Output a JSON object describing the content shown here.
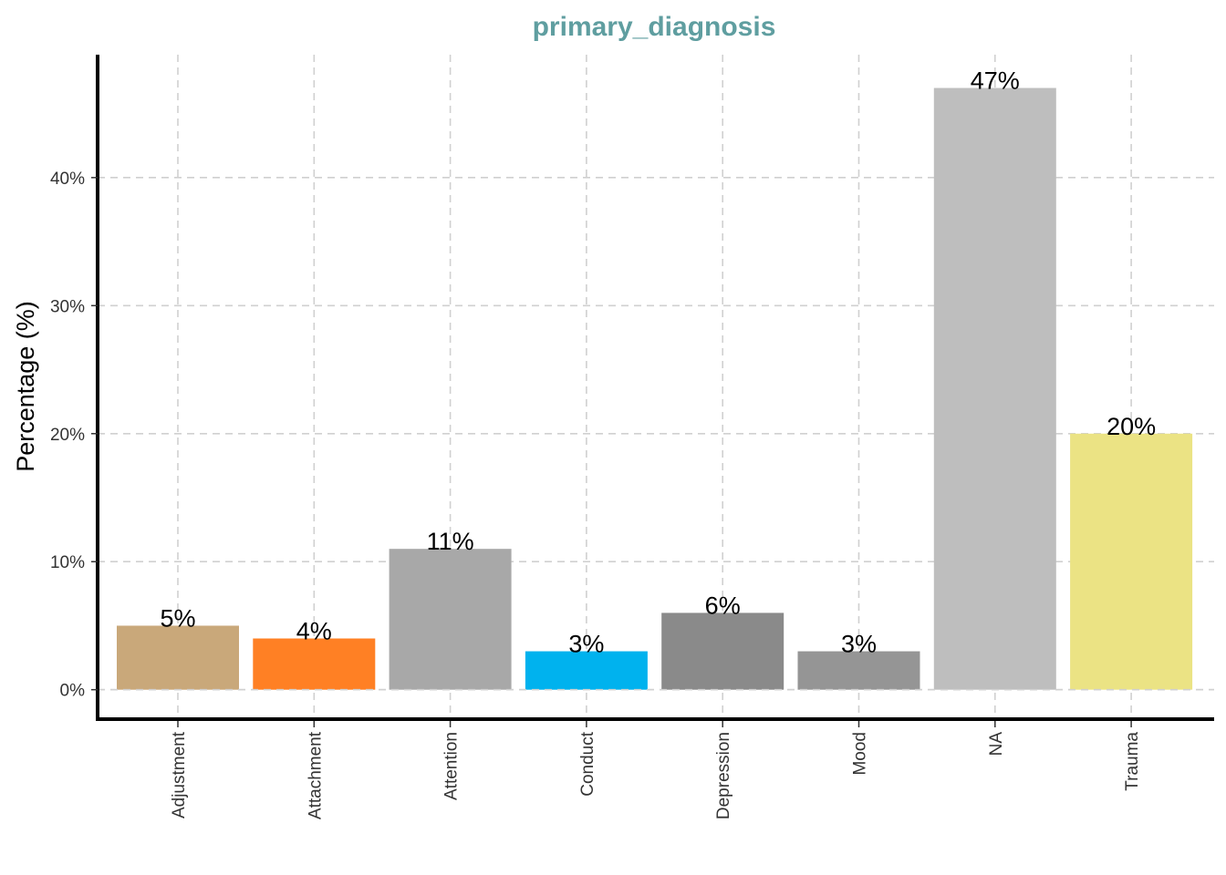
{
  "chart_data": {
    "type": "bar",
    "title": "primary_diagnosis",
    "title_color": "#5f9ea0",
    "xlabel": "",
    "ylabel": "Percentage (%)",
    "categories": [
      "Adjustment",
      "Attachment",
      "Attention",
      "Conduct",
      "Depression",
      "Mood",
      "NA",
      "Trauma"
    ],
    "values": [
      5,
      4,
      11,
      3,
      6,
      3,
      47,
      20
    ],
    "data_labels": [
      "5%",
      "4%",
      "11%",
      "3%",
      "6%",
      "3%",
      "47%",
      "20%"
    ],
    "colors": [
      "#c9a87a",
      "#ff8024",
      "#a8a8a8",
      "#00b2ee",
      "#8a8a8a",
      "#959595",
      "#bebebe",
      "#ebe384"
    ],
    "yticks": [
      0,
      10,
      20,
      30,
      40
    ],
    "ytick_labels": [
      "0%",
      "10%",
      "20%",
      "30%",
      "40%"
    ],
    "ylim": [
      -2.3,
      49.6
    ],
    "grid": true,
    "legend": "none"
  }
}
